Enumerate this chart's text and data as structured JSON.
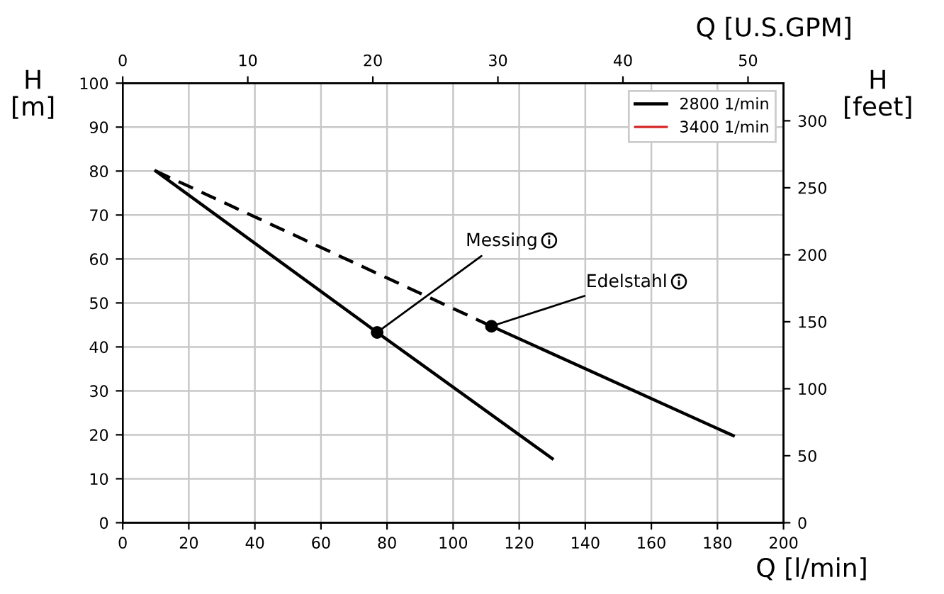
{
  "chart_data": {
    "type": "line",
    "xlabel": "Q [l/min]",
    "ylabel": "H\n[m]",
    "x2label": "Q [U.S.GPM]",
    "y2label": "H\n[feet]",
    "xlim": [
      0,
      200
    ],
    "xticks": [
      0,
      20,
      40,
      60,
      80,
      100,
      120,
      140,
      160,
      180,
      200
    ],
    "ylim": [
      0,
      100
    ],
    "yticks": [
      0,
      10,
      20,
      30,
      40,
      50,
      60,
      70,
      80,
      90,
      100
    ],
    "x2lim": [
      0,
      52.84
    ],
    "x2ticks": [
      0,
      10,
      20,
      30,
      40,
      50
    ],
    "y2lim": [
      0,
      328.08
    ],
    "y2ticks": [
      0,
      50,
      100,
      150,
      200,
      250,
      300
    ],
    "series": [
      {
        "name": "2800 1/min",
        "color": "#000000",
        "x": [
          10,
          77,
          130
        ],
        "values": [
          80,
          43.3,
          14.6
        ],
        "line_style": "solid"
      },
      {
        "color": "#000000",
        "x": [
          10,
          111.6
        ],
        "values": [
          80,
          44.7
        ],
        "line_style": "dashed"
      },
      {
        "color": "#000000",
        "x": [
          111.6,
          184.8
        ],
        "values": [
          44.7,
          19.8
        ],
        "line_style": "solid"
      },
      {
        "name": "3400 1/min",
        "color": "#d62728",
        "line_style": "solid"
      },
      {
        "type": "scatter",
        "color": "#000000",
        "x": [
          77,
          111.6
        ],
        "values": [
          43.3,
          44.7
        ],
        "marker": "circle"
      }
    ],
    "annotations": [
      {
        "text": "Messing",
        "x": 77,
        "y": 43.3
      },
      {
        "text": "Edelstahl",
        "x": 111.6,
        "y": 44.7
      }
    ],
    "grid": true,
    "legend": "top right"
  }
}
